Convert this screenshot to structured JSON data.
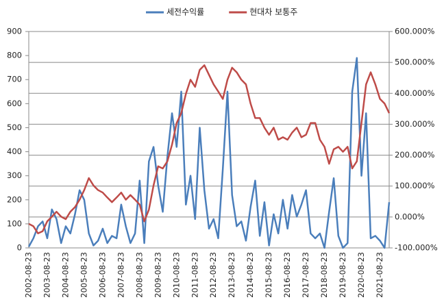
{
  "chart_data": {
    "type": "line",
    "categories": [
      "2002-08-23",
      null,
      null,
      null,
      "2003-08-23",
      null,
      null,
      null,
      "2004-08-23",
      null,
      null,
      null,
      "2005-08-23",
      null,
      null,
      null,
      "2006-08-23",
      null,
      null,
      null,
      "2007-08-23",
      null,
      null,
      null,
      "2008-08-23",
      null,
      null,
      null,
      "2009-08-23",
      null,
      null,
      null,
      "2010-08-23",
      null,
      null,
      null,
      "2011-08-23",
      null,
      null,
      null,
      "2012-08-23",
      null,
      null,
      null,
      "2013-08-23",
      null,
      null,
      null,
      "2014-08-23",
      null,
      null,
      null,
      "2015-08-23",
      null,
      null,
      null,
      "2016-08-23",
      null,
      null,
      null,
      "2017-08-23",
      null,
      null,
      null,
      "2018-08-23",
      null,
      null,
      null,
      "2019-08-23",
      null,
      null,
      null,
      "2020-08-23",
      null,
      null,
      null,
      "2021-08-23",
      null,
      null
    ],
    "series": [
      {
        "name": "세전수익률",
        "color": "#4a7ebb",
        "axis": "y",
        "values": [
          5,
          40,
          90,
          110,
          40,
          160,
          120,
          20,
          90,
          60,
          140,
          240,
          200,
          60,
          10,
          30,
          80,
          20,
          50,
          40,
          180,
          90,
          20,
          60,
          280,
          20,
          360,
          420,
          260,
          150,
          380,
          560,
          420,
          650,
          180,
          300,
          120,
          500,
          240,
          80,
          120,
          40,
          330,
          650,
          220,
          90,
          110,
          30,
          170,
          280,
          50,
          190,
          10,
          140,
          60,
          200,
          80,
          220,
          130,
          180,
          240,
          60,
          40,
          60,
          0,
          150,
          290,
          50,
          0,
          20,
          650,
          790,
          300,
          560,
          40,
          50,
          30,
          0,
          190
        ]
      },
      {
        "name": "현대차 보통주",
        "color": "#be4b48",
        "axis": "y2",
        "values": [
          -22,
          -30,
          -53,
          -46,
          -14,
          1,
          17,
          1,
          -7,
          17,
          32,
          56,
          87,
          126,
          102,
          87,
          79,
          63,
          48,
          63,
          79,
          56,
          71,
          56,
          40,
          -14,
          24,
          102,
          164,
          157,
          180,
          234,
          304,
          336,
          398,
          444,
          421,
          476,
          491,
          460,
          429,
          406,
          382,
          444,
          483,
          468,
          444,
          429,
          367,
          320,
          320,
          289,
          266,
          289,
          250,
          258,
          250,
          273,
          289,
          258,
          266,
          304,
          304,
          250,
          227,
          172,
          219,
          227,
          211,
          227,
          157,
          180,
          304,
          429,
          468,
          429,
          382,
          367,
          336
        ]
      }
    ],
    "ylim": [
      0,
      900
    ],
    "yticks": [
      0,
      100,
      200,
      300,
      400,
      500,
      600,
      700,
      800,
      900
    ],
    "y2lim": [
      -100,
      600
    ],
    "y2ticks": [
      {
        "value": -100,
        "label": "-100.000%"
      },
      {
        "value": 0,
        "label": "0.000%"
      },
      {
        "value": 100,
        "label": "100.000%"
      },
      {
        "value": 200,
        "label": "200.000%"
      },
      {
        "value": 300,
        "label": "300.000%"
      },
      {
        "value": 400,
        "label": "400.000%"
      },
      {
        "value": 500,
        "label": "500.000%"
      },
      {
        "value": 600,
        "label": "600.000%"
      }
    ],
    "grid": "y2",
    "legend": "top"
  }
}
